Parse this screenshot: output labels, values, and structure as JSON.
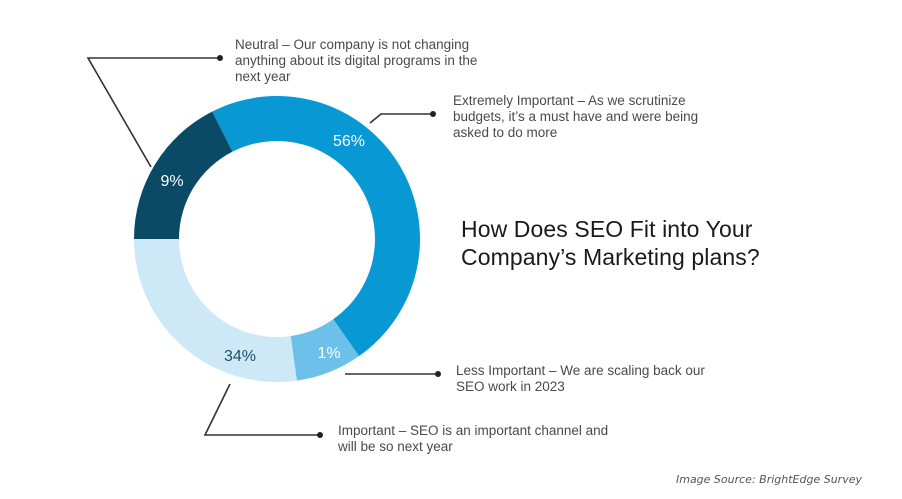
{
  "chart_data": {
    "type": "pie",
    "subtype": "donut",
    "title": "How Does SEO Fit into Your Company’s Marketing plans?",
    "source": "Image Source: BrightEdge Survey",
    "categories": [
      "Extremely Important",
      "Less Important",
      "Important",
      "Neutral"
    ],
    "values": [
      56,
      1,
      34,
      9
    ],
    "value_labels": [
      "56%",
      "1%",
      "34%",
      "9%"
    ],
    "colors": [
      "#0899d4",
      "#6cc0ea",
      "#cde9f7",
      "#0a4a66"
    ],
    "label_colors": [
      "#ffffff",
      "#ffffff",
      "#1f4f6a",
      "#ffffff"
    ],
    "descriptions": [
      "Extremely Important – As we scrutinize budgets, it’s a must have and were being asked to do more",
      "Less Important – We are scaling back our SEO work in 2023",
      "Important – SEO is an important channel and will be so next year",
      "Neutral – Our company is not changing anything about its digital programs in the next year"
    ]
  },
  "title": {
    "line1": "How Does SEO Fit into Your",
    "line2": "Company’s Marketing plans?"
  },
  "callouts": {
    "neutral": [
      "Neutral – Our company is not changing",
      "anything about its digital programs in the",
      "next year"
    ],
    "extremely": [
      "Extremely Important – As we scrutinize",
      "budgets, it’s a must have and were being",
      "asked to do more"
    ],
    "less": [
      "Less Important – We are scaling back our",
      "SEO work in 2023"
    ],
    "important": [
      "Important – SEO is an important channel and",
      "will be so next year"
    ]
  },
  "labels": {
    "extremely": "56%",
    "less": "1%",
    "important": "34%",
    "neutral": "9%"
  },
  "source": "Image Source: BrightEdge Survey"
}
